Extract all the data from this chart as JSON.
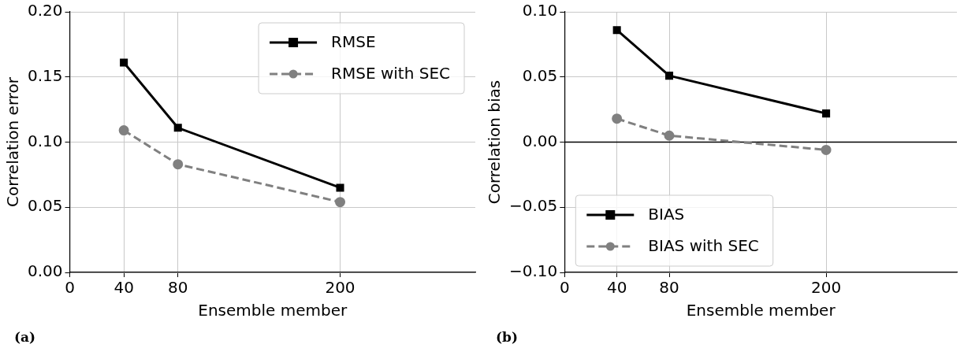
{
  "chart_data": [
    {
      "type": "line",
      "xlabel": "Ensemble member",
      "ylabel": "Correlation error",
      "x": [
        40,
        80,
        200
      ],
      "xlim": [
        0,
        300
      ],
      "xticks": [
        0,
        40,
        80,
        200
      ],
      "ylim": [
        0,
        0.2
      ],
      "yticks": [
        {
          "value": 0,
          "label": "0.00"
        },
        {
          "value": 0.05,
          "label": "0.05"
        },
        {
          "value": 0.1,
          "label": "0.10"
        },
        {
          "value": 0.15,
          "label": "0.15"
        },
        {
          "value": 0.2,
          "label": "0.20"
        }
      ],
      "grid": true,
      "legend": "top right",
      "annotations": [
        "(a)"
      ],
      "series": [
        {
          "name": "RMSE",
          "color": "#000000",
          "marker": "square",
          "line_style": "solid",
          "values": [
            0.161,
            0.111,
            0.065
          ]
        },
        {
          "name": "RMSE with SEC",
          "color": "#808080",
          "marker": "circle",
          "line_style": "dashed",
          "values": [
            0.109,
            0.083,
            0.054
          ]
        }
      ]
    },
    {
      "type": "line",
      "xlabel": "Ensemble member",
      "ylabel": "Correlation bias",
      "x": [
        40,
        80,
        200
      ],
      "xlim": [
        0,
        300
      ],
      "xticks": [
        0,
        40,
        80,
        200
      ],
      "ylim": [
        -0.1,
        0.1
      ],
      "yticks": [
        {
          "value": -0.1,
          "label": "−0.10"
        },
        {
          "value": -0.05,
          "label": "−0.05"
        },
        {
          "value": 0,
          "label": "0.00"
        },
        {
          "value": 0.05,
          "label": "0.05"
        },
        {
          "value": 0.1,
          "label": "0.10"
        }
      ],
      "grid": true,
      "legend": "bottom left",
      "annotations": [
        "(b)"
      ],
      "ref_lines": [
        {
          "axis": "y",
          "value": 0,
          "color": "#000000"
        }
      ],
      "series": [
        {
          "name": "BIAS",
          "color": "#000000",
          "marker": "square",
          "line_style": "solid",
          "values": [
            0.086,
            0.051,
            0.022
          ]
        },
        {
          "name": "BIAS with SEC",
          "color": "#808080",
          "marker": "circle",
          "line_style": "dashed",
          "values": [
            0.018,
            0.005,
            -0.006
          ]
        }
      ]
    }
  ]
}
